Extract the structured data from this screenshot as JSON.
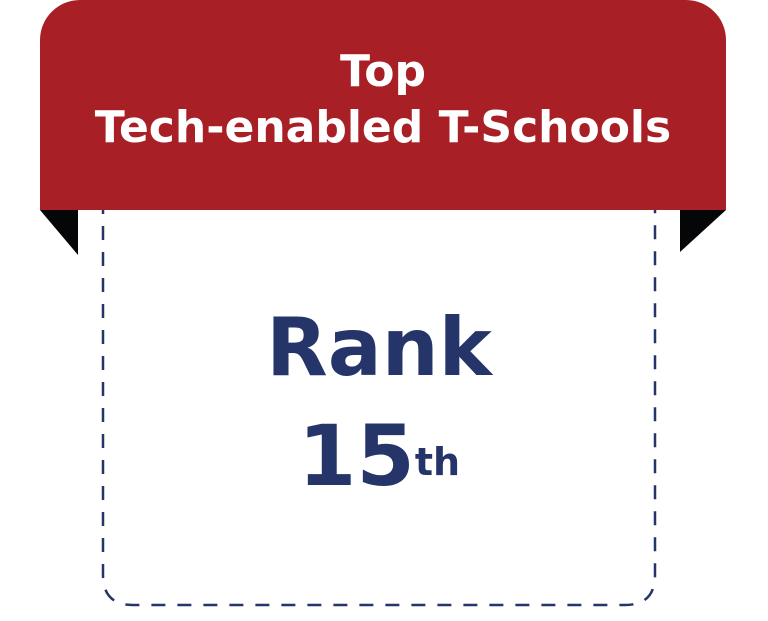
{
  "banner": {
    "line1": "Top",
    "line2": "Tech-enabled T-Schools",
    "color": "#a81f26"
  },
  "rank": {
    "label": "Rank",
    "number": "15",
    "suffix": "th",
    "color": "#253469"
  }
}
